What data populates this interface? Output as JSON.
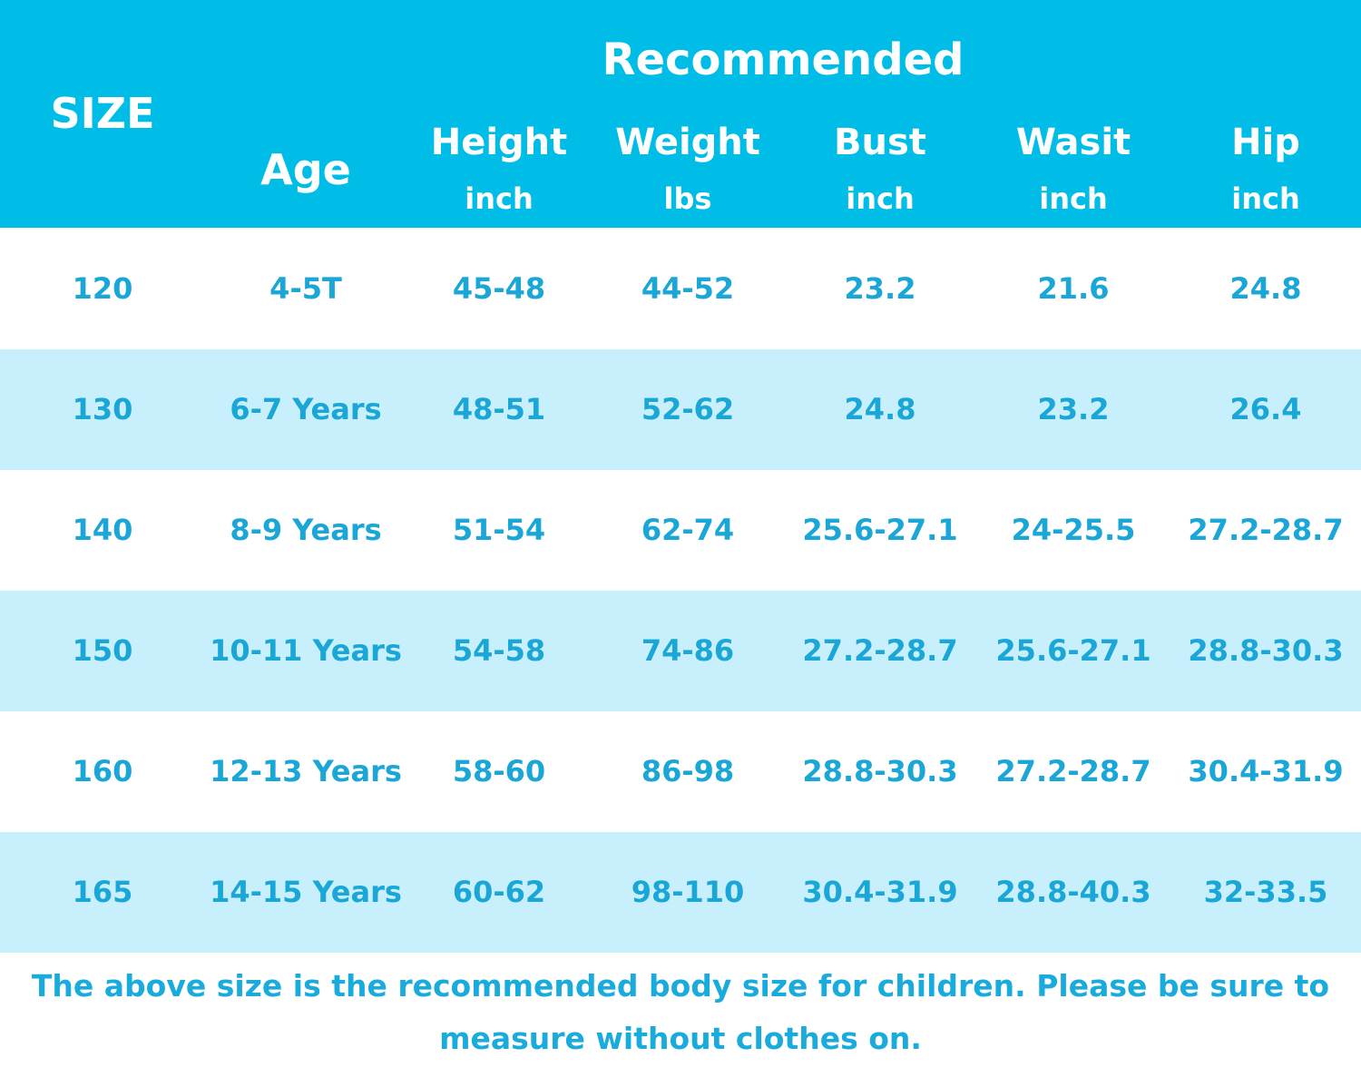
{
  "header": {
    "size": "SIZE",
    "group": "Recommended",
    "columns": [
      {
        "name": "Age"
      },
      {
        "name": "Height",
        "unit": "inch"
      },
      {
        "name": "Weight",
        "unit": "lbs"
      },
      {
        "name": "Bust",
        "unit": "inch"
      },
      {
        "name": "Wasit",
        "unit": "inch"
      },
      {
        "name": "Hip",
        "unit": "inch"
      }
    ]
  },
  "table": {
    "rows": [
      [
        "120",
        "4-5T",
        "45-48",
        "44-52",
        "23.2",
        "21.6",
        "24.8"
      ],
      [
        "130",
        "6-7 Years",
        "48-51",
        "52-62",
        "24.8",
        "23.2",
        "26.4"
      ],
      [
        "140",
        "8-9 Years",
        "51-54",
        "62-74",
        "25.6-27.1",
        "24-25.5",
        "27.2-28.7"
      ],
      [
        "150",
        "10-11 Years",
        "54-58",
        "74-86",
        "27.2-28.7",
        "25.6-27.1",
        "28.8-30.3"
      ],
      [
        "160",
        "12-13 Years",
        "58-60",
        "86-98",
        "28.8-30.3",
        "27.2-28.7",
        "30.4-31.9"
      ],
      [
        "165",
        "14-15 Years",
        "60-62",
        "98-110",
        "30.4-31.9",
        "28.8-40.3",
        "32-33.5"
      ]
    ]
  },
  "footer": "The above size is the recommended body size for children. Please be sure to measure without clothes on."
}
